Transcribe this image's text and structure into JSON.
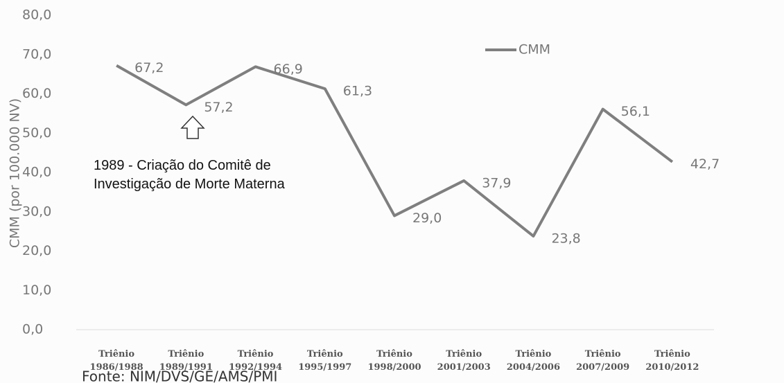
{
  "chart_data": {
    "type": "line",
    "categories": [
      "Triênio 1986/1988",
      "Triênio 1989/1991",
      "Triênio 1992/1994",
      "Triênio 1995/1997",
      "Triênio 1998/2000",
      "Triênio 2001/2003",
      "Triênio 2004/2006",
      "Triênio 2007/2009",
      "Triênio 2010/2012"
    ],
    "series": [
      {
        "name": "CMM",
        "color": "#7f7f7f",
        "values": [
          67.2,
          57.2,
          66.9,
          61.3,
          29.0,
          37.9,
          23.8,
          56.1,
          42.7
        ],
        "value_labels": [
          "67,2",
          "57,2",
          "66,9",
          "61,3",
          "29,0",
          "37,9",
          "23,8",
          "56,1",
          "42,7"
        ]
      }
    ],
    "ylabel": "CMM (por 100.000 NV)",
    "ylim": [
      0,
      80
    ],
    "yticks": [
      {
        "value": 0,
        "label": "0,0"
      },
      {
        "value": 10,
        "label": "10,0"
      },
      {
        "value": 20,
        "label": "20,0"
      },
      {
        "value": 30,
        "label": "30,0"
      },
      {
        "value": 40,
        "label": "40,0"
      },
      {
        "value": 50,
        "label": "50,0"
      },
      {
        "value": 60,
        "label": "60,0"
      },
      {
        "value": 70,
        "label": "70,0"
      },
      {
        "value": 80,
        "label": "80,0"
      }
    ],
    "grid": false,
    "legend": "top-right",
    "annotation": [
      "1989 - Criação do Comitê de",
      "Investigação  de Morte Materna"
    ],
    "source": "Fonte: NIM/DVS/GE/AMS/PMI"
  }
}
